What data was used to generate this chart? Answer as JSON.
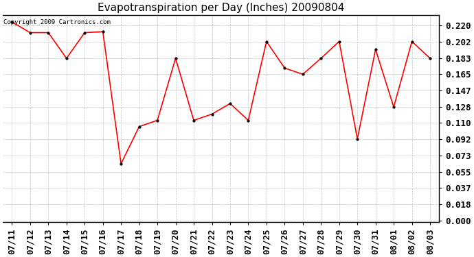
{
  "title": "Evapotranspiration per Day (Inches) 20090804",
  "copyright_text": "Copyright 2009 Cartronics.com",
  "dates": [
    "07/11",
    "07/12",
    "07/13",
    "07/14",
    "07/15",
    "07/16",
    "07/17",
    "07/18",
    "07/19",
    "07/20",
    "07/21",
    "07/22",
    "07/23",
    "07/24",
    "07/25",
    "07/26",
    "07/27",
    "07/28",
    "07/29",
    "07/30",
    "07/31",
    "08/01",
    "08/02",
    "08/03"
  ],
  "values": [
    0.224,
    0.212,
    0.212,
    0.183,
    0.212,
    0.213,
    0.064,
    0.106,
    0.113,
    0.183,
    0.113,
    0.12,
    0.132,
    0.113,
    0.202,
    0.172,
    0.165,
    0.183,
    0.202,
    0.092,
    0.193,
    0.128,
    0.202,
    0.183
  ],
  "line_color": "#ff0000",
  "marker": "o",
  "marker_size": 2.5,
  "bg_color": "#ffffff",
  "plot_bg_color": "#ffffff",
  "grid_color": "#bbbbbb",
  "yticks": [
    0.0,
    0.018,
    0.037,
    0.055,
    0.073,
    0.092,
    0.11,
    0.128,
    0.147,
    0.165,
    0.183,
    0.202,
    0.22
  ],
  "ylim": [
    -0.002,
    0.232
  ],
  "title_fontsize": 11,
  "tick_fontsize": 9,
  "copyright_fontsize": 6.5
}
